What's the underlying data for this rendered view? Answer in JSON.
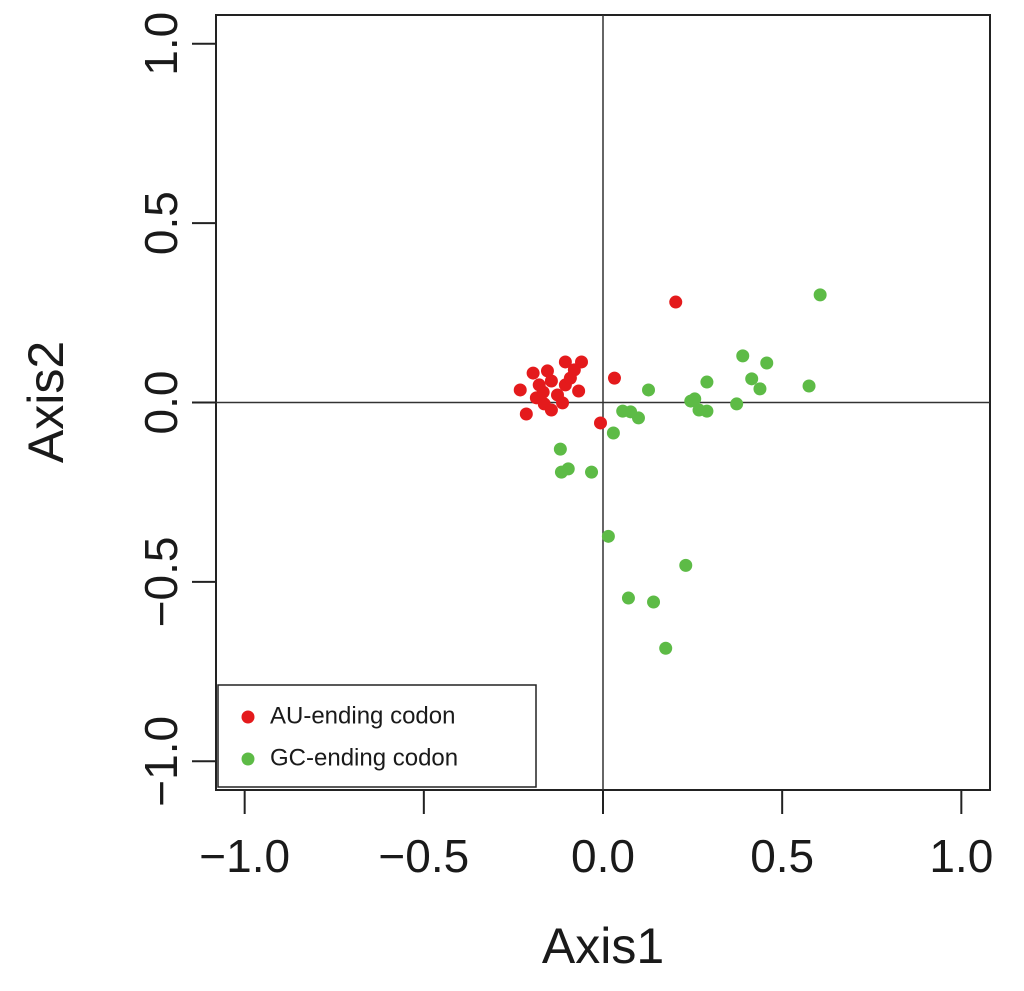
{
  "chart_data": {
    "type": "scatter",
    "x_label": "Axis1",
    "y_label": "Axis2",
    "xlim": [
      -1.08,
      1.08
    ],
    "ylim": [
      -1.08,
      1.08
    ],
    "xticks": [
      {
        "value": -1,
        "label": "−1.0"
      },
      {
        "value": -0.5,
        "label": "−0.5"
      },
      {
        "value": 0,
        "label": "0.0"
      },
      {
        "value": 0.5,
        "label": "0.5"
      },
      {
        "value": 1,
        "label": "1.0"
      }
    ],
    "yticks": [
      {
        "value": -1,
        "label": "−1.0"
      },
      {
        "value": -0.5,
        "label": "−0.5"
      },
      {
        "value": 0,
        "label": "0.0"
      },
      {
        "value": 0.5,
        "label": "0.5"
      },
      {
        "value": 1,
        "label": "1.0"
      }
    ],
    "legend_position": "bottomleft",
    "series": [
      {
        "name": "AU-ending codon",
        "color": "#e41a1c",
        "x": [
          0.203,
          0.032,
          -0.007,
          -0.231,
          -0.214,
          -0.195,
          -0.178,
          -0.186,
          -0.164,
          -0.144,
          -0.144,
          -0.127,
          -0.113,
          -0.105,
          -0.105,
          -0.091,
          -0.08,
          -0.068,
          -0.06,
          -0.155,
          -0.167
        ],
        "values": [
          0.28,
          0.068,
          -0.057,
          0.035,
          -0.032,
          0.082,
          0.049,
          0.013,
          -0.004,
          0.06,
          -0.021,
          0.021,
          -0.001,
          0.113,
          0.049,
          0.068,
          0.091,
          0.032,
          0.113,
          0.088,
          0.029
        ]
      },
      {
        "name": "GC-ending codon",
        "color": "#5dbb46",
        "x": [
          0.606,
          0.575,
          0.457,
          0.39,
          0.415,
          0.438,
          0.373,
          0.29,
          0.29,
          0.268,
          0.256,
          0.245,
          0.127,
          0.099,
          0.077,
          0.055,
          0.029,
          -0.119,
          -0.097,
          -0.116,
          -0.032,
          0.015,
          0.231,
          0.071,
          0.141,
          0.175
        ],
        "values": [
          0.3,
          0.046,
          0.11,
          0.13,
          0.066,
          0.038,
          -0.004,
          0.057,
          -0.024,
          -0.021,
          0.01,
          0.004,
          0.035,
          -0.043,
          -0.026,
          -0.024,
          -0.085,
          -0.13,
          -0.185,
          -0.194,
          -0.194,
          -0.373,
          -0.454,
          -0.545,
          -0.556,
          -0.685
        ]
      }
    ]
  }
}
